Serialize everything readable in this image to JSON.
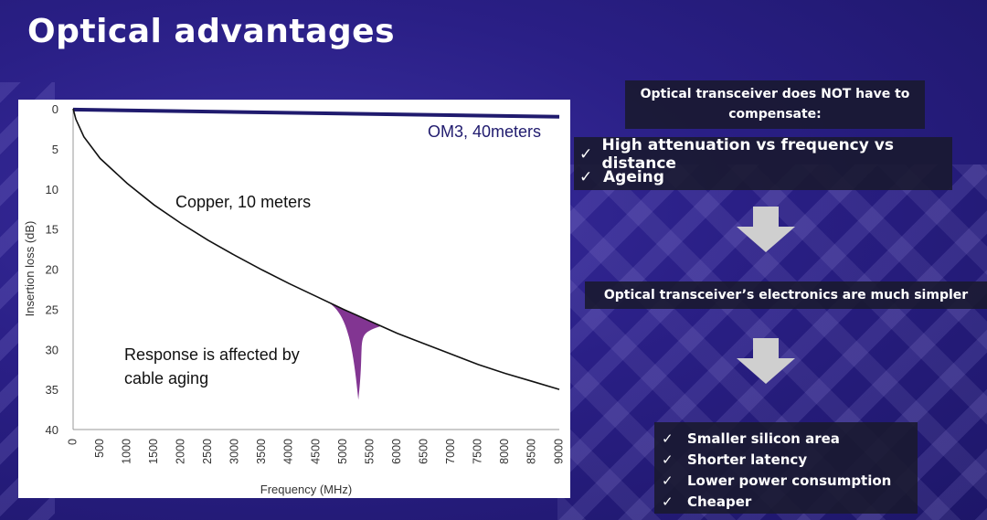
{
  "slide": {
    "title": "Optical advantages"
  },
  "chart_data": {
    "type": "line",
    "xlabel": "Frequency (MHz)",
    "ylabel": "Insertion loss (dB)",
    "xlim": [
      0,
      9000
    ],
    "ylim": [
      0,
      40
    ],
    "y_inverted": true,
    "x_ticks": [
      0,
      500,
      1000,
      1500,
      2000,
      2500,
      3000,
      3500,
      4000,
      4500,
      5000,
      5500,
      6000,
      6500,
      7000,
      7500,
      8000,
      8500,
      9000
    ],
    "y_ticks": [
      0,
      5,
      10,
      15,
      20,
      25,
      30,
      35,
      40
    ],
    "series": [
      {
        "name": "OM3, 40meters",
        "color": "#201b6e",
        "x": [
          0,
          9000
        ],
        "y": [
          0.1,
          1.0
        ]
      },
      {
        "name": "Copper, 10 meters",
        "color": "#111111",
        "x": [
          0,
          50,
          200,
          500,
          1000,
          1500,
          2000,
          2500,
          3000,
          3500,
          4000,
          4500,
          5000,
          5500,
          6000,
          6500,
          7000,
          7500,
          8000,
          8500,
          9000
        ],
        "y": [
          0,
          1.3,
          3.5,
          6.2,
          9.3,
          12.0,
          14.3,
          16.4,
          18.3,
          20.1,
          21.8,
          23.4,
          25.0,
          26.5,
          28.0,
          29.3,
          30.6,
          31.9,
          33.0,
          34.0,
          35.0
        ]
      }
    ],
    "annotations": {
      "om3_label": "OM3, 40meters",
      "copper_label": "Copper, 10 meters",
      "aging_line1": "Response is affected by",
      "aging_line2": "cable aging"
    },
    "aging_region": {
      "color": "#7b2a8c",
      "x_start": 4500,
      "x_end": 5700,
      "x_dip": 5280,
      "y_dip": 36.3
    }
  },
  "boxes": {
    "box1": {
      "line1": "Optical transceiver does NOT have to",
      "line2": "compensate:"
    },
    "box2": {
      "check": "✓",
      "items": [
        "High attenuation vs frequency vs distance",
        "Ageing"
      ]
    },
    "box3": {
      "text": "Optical transceiver’s electronics are much simpler"
    },
    "box4": {
      "check": "✓",
      "items": [
        "Smaller silicon area",
        "Shorter latency",
        "Lower power consumption",
        "Cheaper"
      ]
    }
  },
  "colors": {
    "background": "#2a1f86",
    "arrow": "#c8c8c8",
    "box": "#19192d"
  }
}
